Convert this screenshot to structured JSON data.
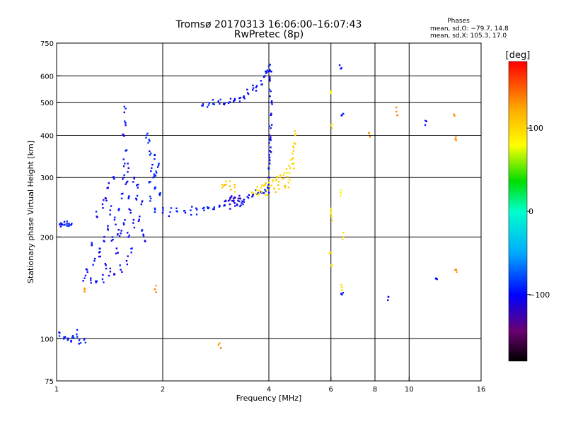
{
  "chart_data": {
    "type": "scatter",
    "title": "Tromsø 20170313 16:06:00–16:07:43",
    "subtitle": "RwPretec (8p)",
    "stats": {
      "heading": "Phases",
      "line_o": "mean, sd,O: −79.7, 14.8",
      "line_x": "mean, sd,X: 105.3, 17.0"
    },
    "xlabel": "Frequency [MHz]",
    "ylabel": "Stationary phase Virtual Height [km]",
    "x_scale": "log2",
    "y_scale": "log",
    "xlim": [
      1,
      16
    ],
    "ylim": [
      75,
      750
    ],
    "x_ticks": [
      {
        "v": 1,
        "label": "1",
        "grid": false
      },
      {
        "v": 2,
        "label": "2",
        "grid": true
      },
      {
        "v": 4,
        "label": "4",
        "grid": true
      },
      {
        "v": 6,
        "label": "6",
        "grid": true
      },
      {
        "v": 8,
        "label": "8",
        "grid": true
      },
      {
        "v": 10,
        "label": "10",
        "grid": true
      },
      {
        "v": 16,
        "label": "16",
        "grid": false
      }
    ],
    "y_ticks": [
      {
        "v": 75,
        "label": "75",
        "grid": false
      },
      {
        "v": 100,
        "label": "100",
        "grid": true
      },
      {
        "v": 200,
        "label": "200",
        "grid": true
      },
      {
        "v": 300,
        "label": "300",
        "grid": true
      },
      {
        "v": 400,
        "label": "400",
        "grid": true
      },
      {
        "v": 500,
        "label": "500",
        "grid": true
      },
      {
        "v": 600,
        "label": "600",
        "grid": true
      },
      {
        "v": 750,
        "label": "750",
        "grid": false
      }
    ],
    "grid": true,
    "colorbar": {
      "title": "[deg]",
      "range": [
        -180,
        180
      ],
      "ticks": [
        {
          "v": 100,
          "label": "100"
        },
        {
          "v": 0,
          "label": "0"
        },
        {
          "v": -100,
          "label": "−100"
        }
      ]
    },
    "series": [
      {
        "values": [
          [
            1.02,
            218
          ],
          [
            1.05,
            217
          ],
          [
            1.08,
            216
          ],
          [
            1.1,
            217
          ],
          [
            1.03,
            220
          ],
          [
            1.07,
            219
          ]
        ],
        "phase": -95
      },
      {
        "values": [
          [
            1.02,
            104
          ],
          [
            1.05,
            101
          ],
          [
            1.08,
            100
          ],
          [
            1.11,
            101
          ],
          [
            1.14,
            103
          ],
          [
            1.2,
            100
          ],
          [
            1.16,
            99
          ],
          [
            1.1,
            98
          ]
        ],
        "phase": -90
      },
      {
        "values": [
          [
            1.2,
            151
          ],
          [
            1.25,
            149
          ],
          [
            1.3,
            148
          ],
          [
            1.35,
            150
          ],
          [
            1.22,
            160
          ],
          [
            1.28,
            170
          ],
          [
            1.32,
            180
          ],
          [
            1.36,
            195
          ],
          [
            1.4,
            210
          ],
          [
            1.3,
            230
          ],
          [
            1.35,
            250
          ],
          [
            1.4,
            280
          ],
          [
            1.45,
            300
          ],
          [
            1.38,
            260
          ],
          [
            1.42,
            240
          ],
          [
            1.46,
            225
          ],
          [
            1.5,
            210
          ],
          [
            1.44,
            200
          ],
          [
            1.26,
            190
          ],
          [
            1.32,
            175
          ],
          [
            1.38,
            165
          ],
          [
            1.48,
            185
          ],
          [
            1.52,
            205
          ],
          [
            1.55,
            220
          ],
          [
            1.5,
            240
          ],
          [
            1.53,
            260
          ],
          [
            1.55,
            300
          ],
          [
            1.56,
            330
          ],
          [
            1.57,
            360
          ],
          [
            1.55,
            400
          ],
          [
            1.56,
            440
          ],
          [
            1.57,
            480
          ],
          [
            1.6,
            320
          ],
          [
            1.58,
            290
          ],
          [
            1.6,
            260
          ],
          [
            1.62,
            240
          ],
          [
            1.65,
            220
          ],
          [
            1.6,
            200
          ],
          [
            1.63,
            180
          ],
          [
            1.58,
            170
          ],
          [
            1.52,
            160
          ],
          [
            1.46,
            155
          ],
          [
            1.42,
            158
          ],
          [
            1.68,
            260
          ],
          [
            1.7,
            280
          ],
          [
            1.66,
            300
          ],
          [
            1.72,
            230
          ],
          [
            1.75,
            210
          ],
          [
            1.78,
            195
          ],
          [
            1.74,
            250
          ]
        ],
        "phase": -100
      },
      {
        "values": [
          [
            1.8,
            400
          ],
          [
            1.82,
            380
          ],
          [
            1.84,
            350
          ],
          [
            1.86,
            320
          ],
          [
            1.88,
            300
          ],
          [
            1.9,
            280
          ],
          [
            1.85,
            260
          ],
          [
            1.83,
            290
          ],
          [
            1.92,
            310
          ],
          [
            1.95,
            330
          ],
          [
            1.9,
            350
          ],
          [
            1.97,
            270
          ]
        ],
        "phase": -90
      },
      {
        "values": [
          [
            1.9,
            237
          ],
          [
            2.0,
            236
          ],
          [
            2.1,
            237
          ],
          [
            2.2,
            238
          ],
          [
            2.3,
            239
          ],
          [
            2.4,
            240
          ],
          [
            2.5,
            241
          ],
          [
            2.6,
            243
          ],
          [
            2.7,
            244
          ],
          [
            2.8,
            245
          ],
          [
            2.9,
            247
          ],
          [
            3.0,
            248
          ],
          [
            3.1,
            250
          ],
          [
            3.2,
            252
          ],
          [
            3.3,
            255
          ],
          [
            3.4,
            258
          ],
          [
            3.5,
            261
          ],
          [
            3.6,
            265
          ],
          [
            3.7,
            268
          ],
          [
            3.8,
            272
          ],
          [
            3.9,
            276
          ],
          [
            4.0,
            280
          ]
        ],
        "phase": -95
      },
      {
        "values": [
          [
            3.0,
            255
          ],
          [
            3.1,
            258
          ],
          [
            3.2,
            262
          ],
          [
            3.3,
            265
          ],
          [
            3.35,
            252
          ],
          [
            3.25,
            250
          ],
          [
            3.15,
            256
          ]
        ],
        "phase": -115
      },
      {
        "values": [
          [
            2.6,
            490
          ],
          [
            2.7,
            492
          ],
          [
            2.8,
            494
          ],
          [
            2.9,
            496
          ],
          [
            3.0,
            498
          ],
          [
            3.1,
            502
          ],
          [
            3.2,
            508
          ],
          [
            3.3,
            515
          ],
          [
            3.4,
            522
          ],
          [
            3.5,
            530
          ],
          [
            3.6,
            545
          ],
          [
            3.7,
            560
          ],
          [
            3.8,
            580
          ],
          [
            3.9,
            600
          ],
          [
            3.95,
            615
          ],
          [
            4.0,
            640
          ]
        ],
        "phase": -95
      },
      {
        "values": [
          [
            4.0,
            280
          ],
          [
            4.01,
            300
          ],
          [
            4.02,
            330
          ],
          [
            4.03,
            360
          ],
          [
            4.04,
            390
          ],
          [
            4.05,
            420
          ],
          [
            4.06,
            460
          ],
          [
            4.07,
            500
          ],
          [
            4.05,
            540
          ],
          [
            4.03,
            580
          ],
          [
            4.04,
            620
          ],
          [
            4.02,
            400
          ],
          [
            4.01,
            350
          ],
          [
            4.0,
            320
          ]
        ],
        "phase": -100
      },
      {
        "values": [
          [
            3.6,
            270
          ],
          [
            3.7,
            275
          ],
          [
            3.8,
            280
          ],
          [
            3.9,
            285
          ],
          [
            4.0,
            290
          ],
          [
            4.1,
            292
          ],
          [
            4.2,
            295
          ],
          [
            4.3,
            300
          ],
          [
            4.4,
            305
          ],
          [
            4.5,
            310
          ],
          [
            4.6,
            320
          ],
          [
            4.65,
            340
          ],
          [
            4.7,
            360
          ],
          [
            4.72,
            380
          ],
          [
            4.75,
            400
          ],
          [
            4.7,
            330
          ],
          [
            4.55,
            290
          ],
          [
            4.45,
            280
          ],
          [
            4.25,
            285
          ],
          [
            4.15,
            278
          ],
          [
            3.95,
            275
          ],
          [
            3.75,
            268
          ]
        ],
        "phase": 100
      },
      {
        "values": [
          [
            3.0,
            285
          ],
          [
            3.1,
            283
          ],
          [
            3.2,
            281
          ],
          [
            2.95,
            280
          ]
        ],
        "phase": 105
      },
      {
        "values": [
          [
            6.0,
            540
          ],
          [
            6.05,
            420
          ],
          [
            6.0,
            240
          ],
          [
            6.03,
            230
          ],
          [
            6.0,
            180
          ],
          [
            6.02,
            165
          ],
          [
            6.4,
            270
          ],
          [
            6.5,
            200
          ],
          [
            6.45,
            142
          ]
        ],
        "phase": 90
      },
      {
        "values": [
          [
            6.4,
            630
          ],
          [
            6.45,
            460
          ],
          [
            6.45,
            135
          ],
          [
            8.7,
            130
          ],
          [
            11.2,
            440
          ],
          [
            12.0,
            150
          ]
        ],
        "phase": -100
      },
      {
        "values": [
          [
            7.7,
            405
          ],
          [
            9.2,
            470
          ],
          [
            13.4,
            460
          ],
          [
            13.5,
            390
          ],
          [
            13.6,
            160
          ],
          [
            1.2,
            140
          ],
          [
            1.9,
            140
          ],
          [
            2.9,
            97
          ]
        ],
        "phase": 130
      }
    ]
  }
}
